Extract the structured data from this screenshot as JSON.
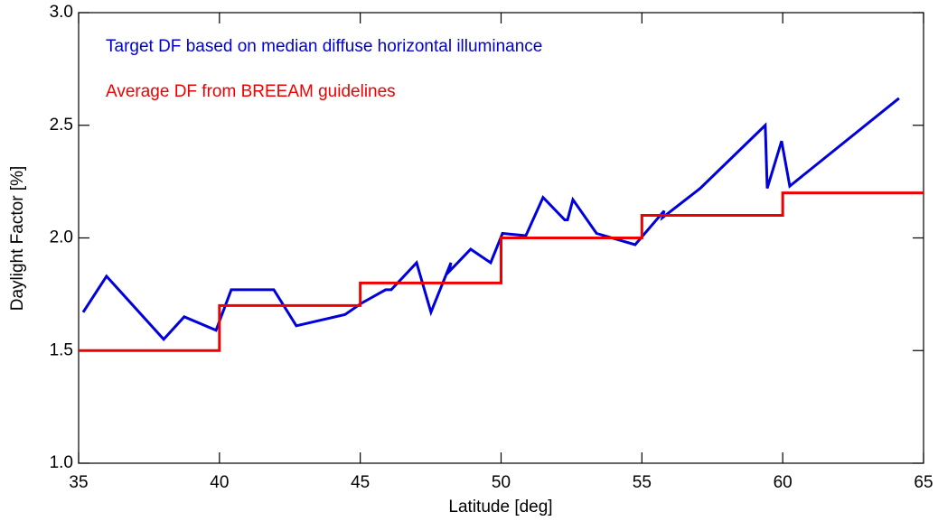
{
  "chart_data": {
    "type": "line",
    "xlabel": "Latitude [deg]",
    "ylabel": "Daylight Factor [%]",
    "xlim": [
      35,
      65
    ],
    "xticks": [
      35,
      40,
      45,
      50,
      55,
      60,
      65
    ],
    "ylim": [
      1,
      3
    ],
    "yticks": [
      {
        "value": 1,
        "label": "1.0"
      },
      1.5,
      {
        "value": 2,
        "label": "2.0"
      },
      2.5,
      {
        "value": 3,
        "label": "3.0"
      }
    ],
    "legend": "upper left",
    "series": [
      {
        "name": "Target DF based on median diffuse horizontal illuminance",
        "color": "#0000dd",
        "x": [
          35.16,
          35.99,
          38.02,
          38.75,
          39.88,
          40.42,
          41.93,
          42.73,
          44.46,
          45.04,
          45.9,
          46.1,
          47.0,
          47.51,
          48.22,
          48.15,
          48.92,
          49.63,
          50.05,
          50.88,
          51.49,
          52.26,
          52.36,
          52.55,
          53.39,
          54.76,
          55.79,
          55.73,
          57.07,
          59.38,
          59.45,
          59.96,
          60.25,
          64.13
        ],
        "values": [
          1.67,
          1.83,
          1.55,
          1.65,
          1.59,
          1.77,
          1.77,
          1.61,
          1.66,
          1.71,
          1.77,
          1.77,
          1.89,
          1.67,
          1.89,
          1.85,
          1.95,
          1.89,
          2.02,
          2.01,
          2.18,
          2.08,
          2.08,
          2.17,
          2.02,
          1.97,
          2.12,
          2.09,
          2.22,
          2.5,
          2.22,
          2.43,
          2.23,
          2.62
        ]
      },
      {
        "name": "Average DF from BREEAM guidelines",
        "color": "#ee0000",
        "drawstyle": "steps-post",
        "x": [
          35,
          40,
          45,
          50,
          55,
          60,
          65
        ],
        "values": [
          1.5,
          1.7,
          1.8,
          2.0,
          2.1,
          2.2,
          2.2
        ]
      }
    ]
  }
}
